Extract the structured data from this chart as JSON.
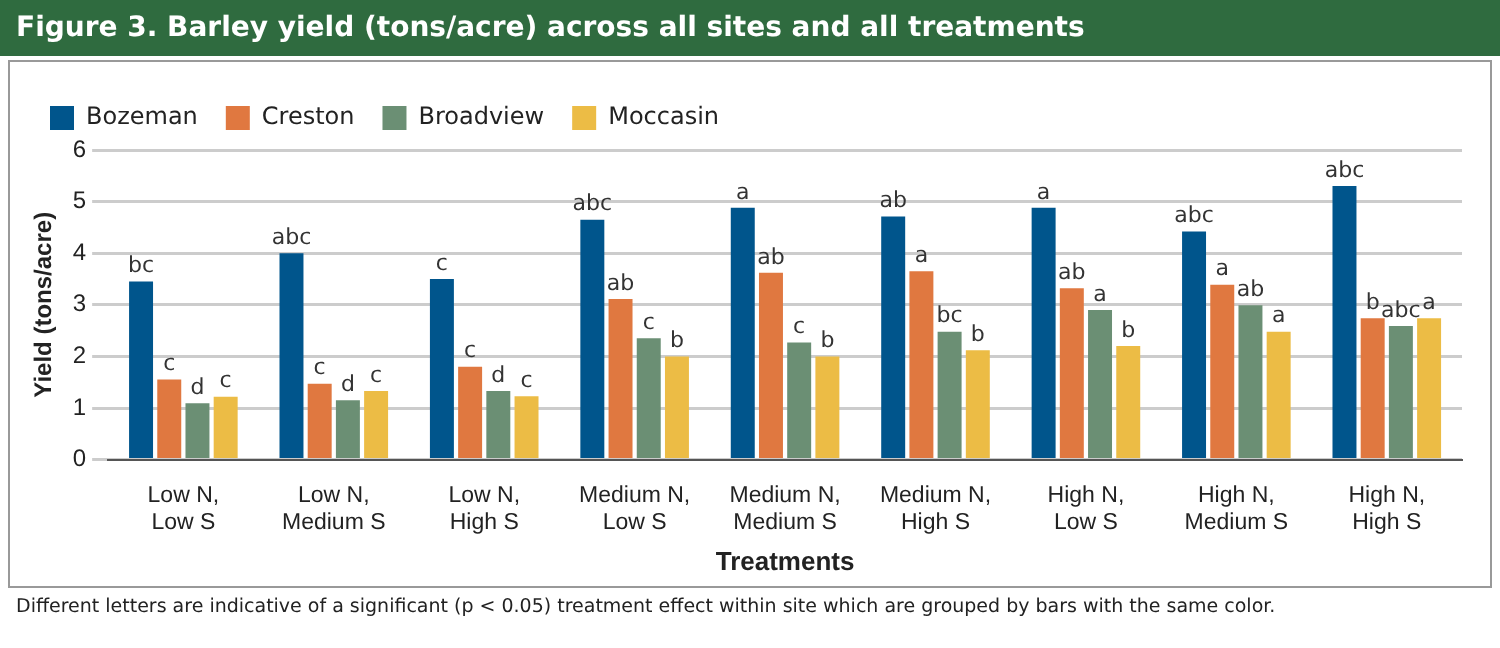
{
  "chart_data": {
    "type": "bar",
    "title": "Figure 3. Barley yield (tons/acre) across all sites and all treatments",
    "xlabel": "Treatments",
    "ylabel": "Yield (tons/acre)",
    "categories": [
      "Low N, Low S",
      "Low N, Medium S",
      "Low N, High S",
      "Medium N, Low S",
      "Medium N, Medium S",
      "Medium N, High S",
      "High N, Low S",
      "High N, Medium S",
      "High N, High S"
    ],
    "series": [
      {
        "name": "Bozeman",
        "color": "#00558c",
        "values": [
          3.45,
          4.0,
          3.5,
          4.65,
          4.88,
          4.71,
          4.88,
          4.42,
          5.3
        ],
        "value_labels": [
          "bc",
          "abc",
          "c",
          "abc",
          "a",
          "ab",
          "a",
          "abc",
          "abc"
        ]
      },
      {
        "name": "Creston",
        "color": "#e07840",
        "values": [
          1.55,
          1.47,
          1.8,
          3.11,
          3.62,
          3.65,
          3.32,
          3.39,
          2.74
        ],
        "value_labels": [
          "c",
          "c",
          "c",
          "ab",
          "ab",
          "a",
          "ab",
          "a",
          "b"
        ]
      },
      {
        "name": "Broadview",
        "color": "#6b8f74",
        "values": [
          1.09,
          1.15,
          1.33,
          2.35,
          2.27,
          2.48,
          2.9,
          2.99,
          2.59
        ],
        "value_labels": [
          "d",
          "d",
          "d",
          "c",
          "c",
          "bc",
          "a",
          "ab",
          "abc"
        ]
      },
      {
        "name": "Moccasin",
        "color": "#ecbc45",
        "values": [
          1.22,
          1.33,
          1.23,
          2.0,
          2.0,
          2.12,
          2.2,
          2.48,
          2.74
        ],
        "value_labels": [
          "c",
          "c",
          "c",
          "b",
          "b",
          "b",
          "b",
          "a",
          "a"
        ]
      }
    ],
    "ylim": [
      0,
      6
    ],
    "yticks": [
      0,
      1,
      2,
      3,
      4,
      5,
      6
    ],
    "grid": "y",
    "legend": "top left",
    "annotations": [
      "Different letters are indicative of a significant (p < 0.05) treatment effect within site which are grouped by bars with the same color."
    ]
  }
}
